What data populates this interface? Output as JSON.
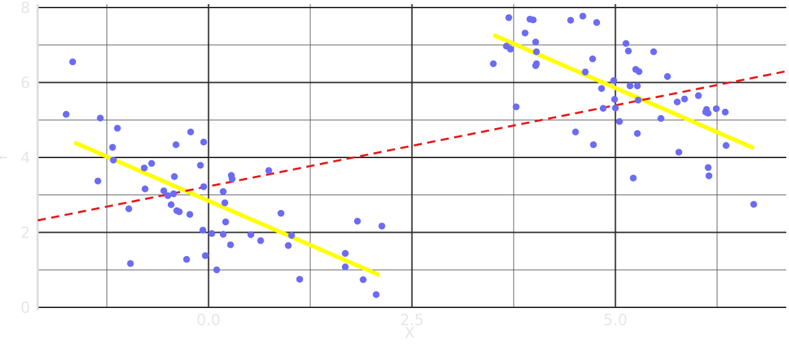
{
  "chart_data": {
    "type": "scatter",
    "title": "",
    "xlabel": "X",
    "ylabel": "Y",
    "xlim": [
      -2.1,
      7.1
    ],
    "ylim": [
      0,
      8
    ],
    "x_major_ticks": [
      0.0,
      2.5,
      5.0
    ],
    "x_tick_labels": [
      "0.0",
      "2.5",
      "5.0"
    ],
    "x_minor_ticks": [
      -1.25,
      1.25,
      3.75,
      6.25
    ],
    "y_major_ticks": [
      0,
      2,
      4,
      6,
      8
    ],
    "y_tick_labels": [
      "0",
      "2",
      "4",
      "6",
      "8"
    ],
    "y_minor_ticks": [
      1,
      3,
      5,
      7
    ],
    "grid": true,
    "legend": "none",
    "colors": {
      "points": "#6b6bf5",
      "cluster_fit": "#ffff00",
      "overall_fit": "#e31a1c",
      "major_grid": "#2b2b2b",
      "minor_grid": "#555555",
      "text": "#e6e6e6"
    },
    "points": [
      [
        -1.67,
        6.55
      ],
      [
        -1.75,
        5.15
      ],
      [
        -1.33,
        5.05
      ],
      [
        -1.12,
        4.78
      ],
      [
        -1.18,
        4.27
      ],
      [
        -1.17,
        3.93
      ],
      [
        -1.36,
        3.37
      ],
      [
        -0.98,
        2.63
      ],
      [
        -0.96,
        1.17
      ],
      [
        -0.79,
        3.72
      ],
      [
        -0.7,
        3.84
      ],
      [
        -0.78,
        3.16
      ],
      [
        -0.55,
        3.11
      ],
      [
        -0.5,
        2.98
      ],
      [
        -0.43,
        3.03
      ],
      [
        -0.46,
        2.74
      ],
      [
        -0.39,
        2.58
      ],
      [
        -0.36,
        2.55
      ],
      [
        -0.23,
        2.48
      ],
      [
        -0.42,
        3.49
      ],
      [
        -0.4,
        4.34
      ],
      [
        -0.22,
        4.68
      ],
      [
        -0.1,
        3.79
      ],
      [
        -0.06,
        4.41
      ],
      [
        -0.06,
        3.22
      ],
      [
        -0.07,
        2.06
      ],
      [
        0.04,
        1.97
      ],
      [
        -0.04,
        1.38
      ],
      [
        0.1,
        1.0
      ],
      [
        -0.27,
        1.28
      ],
      [
        0.18,
        3.09
      ],
      [
        0.2,
        2.79
      ],
      [
        0.21,
        2.28
      ],
      [
        0.18,
        1.95
      ],
      [
        0.28,
        3.52
      ],
      [
        0.29,
        3.43
      ],
      [
        0.27,
        1.67
      ],
      [
        0.52,
        1.94
      ],
      [
        0.64,
        1.78
      ],
      [
        0.74,
        3.65
      ],
      [
        0.89,
        2.51
      ],
      [
        0.98,
        1.65
      ],
      [
        1.02,
        1.92
      ],
      [
        1.12,
        0.75
      ],
      [
        1.68,
        1.44
      ],
      [
        1.68,
        1.08
      ],
      [
        1.83,
        2.3
      ],
      [
        1.9,
        0.74
      ],
      [
        2.06,
        0.34
      ],
      [
        2.13,
        2.17
      ],
      [
        3.5,
        6.5
      ],
      [
        3.66,
        6.97
      ],
      [
        3.69,
        7.73
      ],
      [
        3.71,
        6.89
      ],
      [
        3.78,
        5.35
      ],
      [
        3.89,
        7.32
      ],
      [
        3.95,
        7.69
      ],
      [
        3.99,
        7.67
      ],
      [
        4.02,
        6.45
      ],
      [
        4.03,
        6.5
      ],
      [
        4.03,
        6.82
      ],
      [
        4.02,
        7.08
      ],
      [
        4.45,
        7.66
      ],
      [
        4.51,
        4.68
      ],
      [
        4.6,
        7.77
      ],
      [
        4.63,
        6.28
      ],
      [
        4.72,
        6.63
      ],
      [
        4.73,
        4.34
      ],
      [
        4.77,
        7.6
      ],
      [
        4.83,
        5.84
      ],
      [
        4.85,
        5.31
      ],
      [
        4.98,
        6.05
      ],
      [
        4.99,
        5.55
      ],
      [
        5.0,
        5.32
      ],
      [
        5.05,
        4.96
      ],
      [
        5.13,
        7.04
      ],
      [
        5.16,
        6.84
      ],
      [
        5.18,
        5.91
      ],
      [
        5.22,
        3.45
      ],
      [
        5.25,
        6.35
      ],
      [
        5.27,
        5.91
      ],
      [
        5.27,
        4.64
      ],
      [
        5.28,
        5.53
      ],
      [
        5.29,
        6.29
      ],
      [
        5.47,
        6.82
      ],
      [
        5.56,
        5.04
      ],
      [
        5.64,
        6.16
      ],
      [
        5.76,
        5.48
      ],
      [
        5.78,
        4.14
      ],
      [
        5.85,
        5.56
      ],
      [
        6.02,
        5.65
      ],
      [
        6.11,
        5.21
      ],
      [
        6.12,
        5.28
      ],
      [
        6.14,
        5.18
      ],
      [
        6.14,
        3.73
      ],
      [
        6.15,
        3.51
      ],
      [
        6.24,
        5.3
      ],
      [
        6.35,
        5.21
      ],
      [
        6.36,
        4.32
      ],
      [
        6.7,
        2.75
      ]
    ],
    "fit_lines": [
      {
        "style": "solid",
        "color": "#ffff00",
        "x": [
          -1.65,
          2.1
        ],
        "y": [
          4.4,
          0.86
        ]
      },
      {
        "style": "solid",
        "color": "#ffff00",
        "x": [
          3.5,
          6.7
        ],
        "y": [
          7.27,
          4.25
        ]
      },
      {
        "style": "dashed",
        "color": "#e31a1c",
        "x": [
          -2.1,
          7.1
        ],
        "y": [
          2.32,
          6.3
        ]
      }
    ]
  }
}
